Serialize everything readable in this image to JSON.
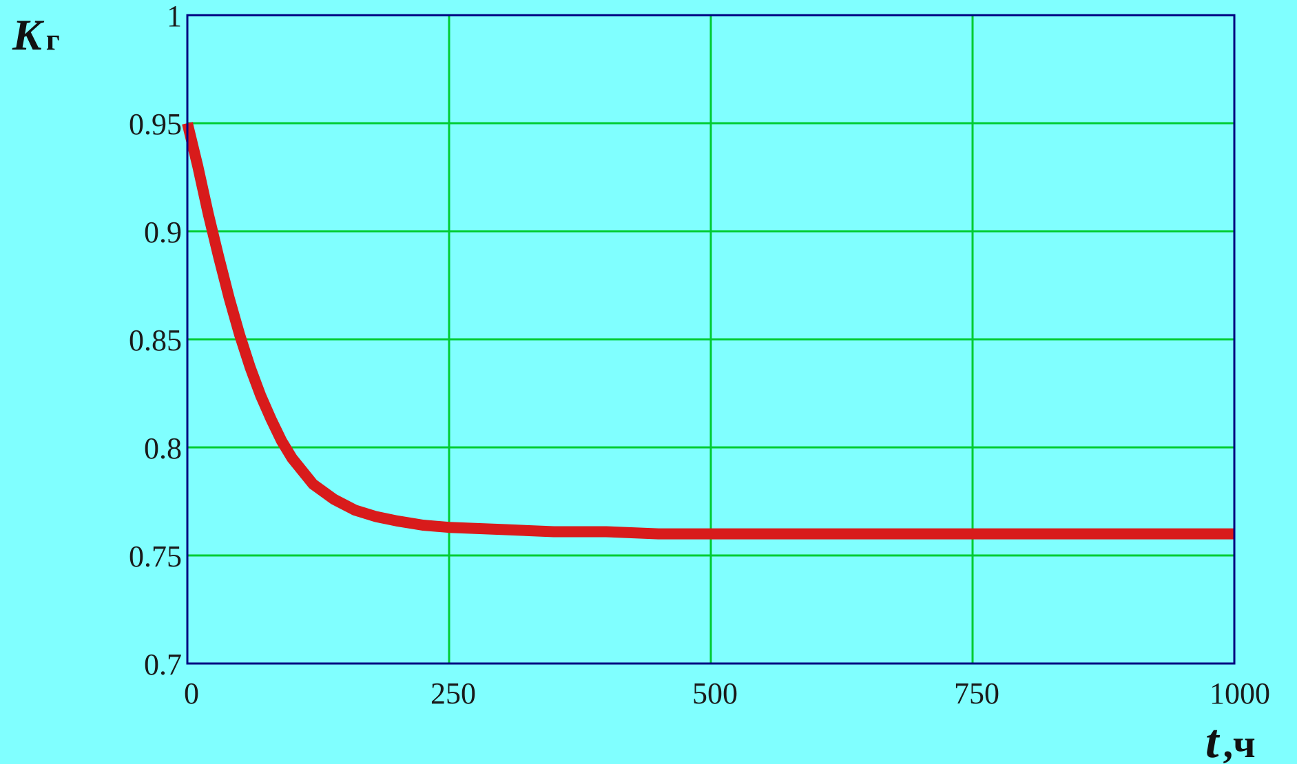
{
  "colors": {
    "background": "#80FFFF",
    "plot_frame": "#000080",
    "grid": "#00CC33",
    "series": "#D81B1B"
  },
  "y_axis_label": {
    "symbol": "K",
    "subscript": "г"
  },
  "x_axis_label": {
    "symbol": "t",
    "unit": ",ч"
  },
  "chart_data": {
    "type": "line",
    "title": "",
    "grid": true,
    "xlim": [
      0,
      1000
    ],
    "ylim": [
      0.7,
      1
    ],
    "x_ticks": [
      0,
      250,
      500,
      750,
      1000
    ],
    "x_tick_labels": [
      "0",
      "250",
      "500",
      "750",
      "1000"
    ],
    "y_ticks": [
      0.7,
      0.75,
      0.8,
      0.85,
      0.9,
      0.95,
      1
    ],
    "y_tick_labels": [
      "0.7",
      "0.75",
      "0.8",
      "0.85",
      "0.9",
      "0.95",
      "1"
    ],
    "series": [
      {
        "color": "#D81B1B",
        "x": [
          0,
          10,
          20,
          30,
          40,
          50,
          60,
          70,
          80,
          90,
          100,
          120,
          140,
          160,
          180,
          200,
          225,
          250,
          300,
          350,
          400,
          450,
          500,
          600,
          700,
          800,
          900,
          1000
        ],
        "y": [
          0.95,
          0.93,
          0.908,
          0.888,
          0.869,
          0.852,
          0.837,
          0.824,
          0.813,
          0.803,
          0.795,
          0.783,
          0.776,
          0.771,
          0.768,
          0.766,
          0.764,
          0.763,
          0.762,
          0.761,
          0.761,
          0.76,
          0.76,
          0.76,
          0.76,
          0.76,
          0.76,
          0.76
        ]
      }
    ]
  }
}
